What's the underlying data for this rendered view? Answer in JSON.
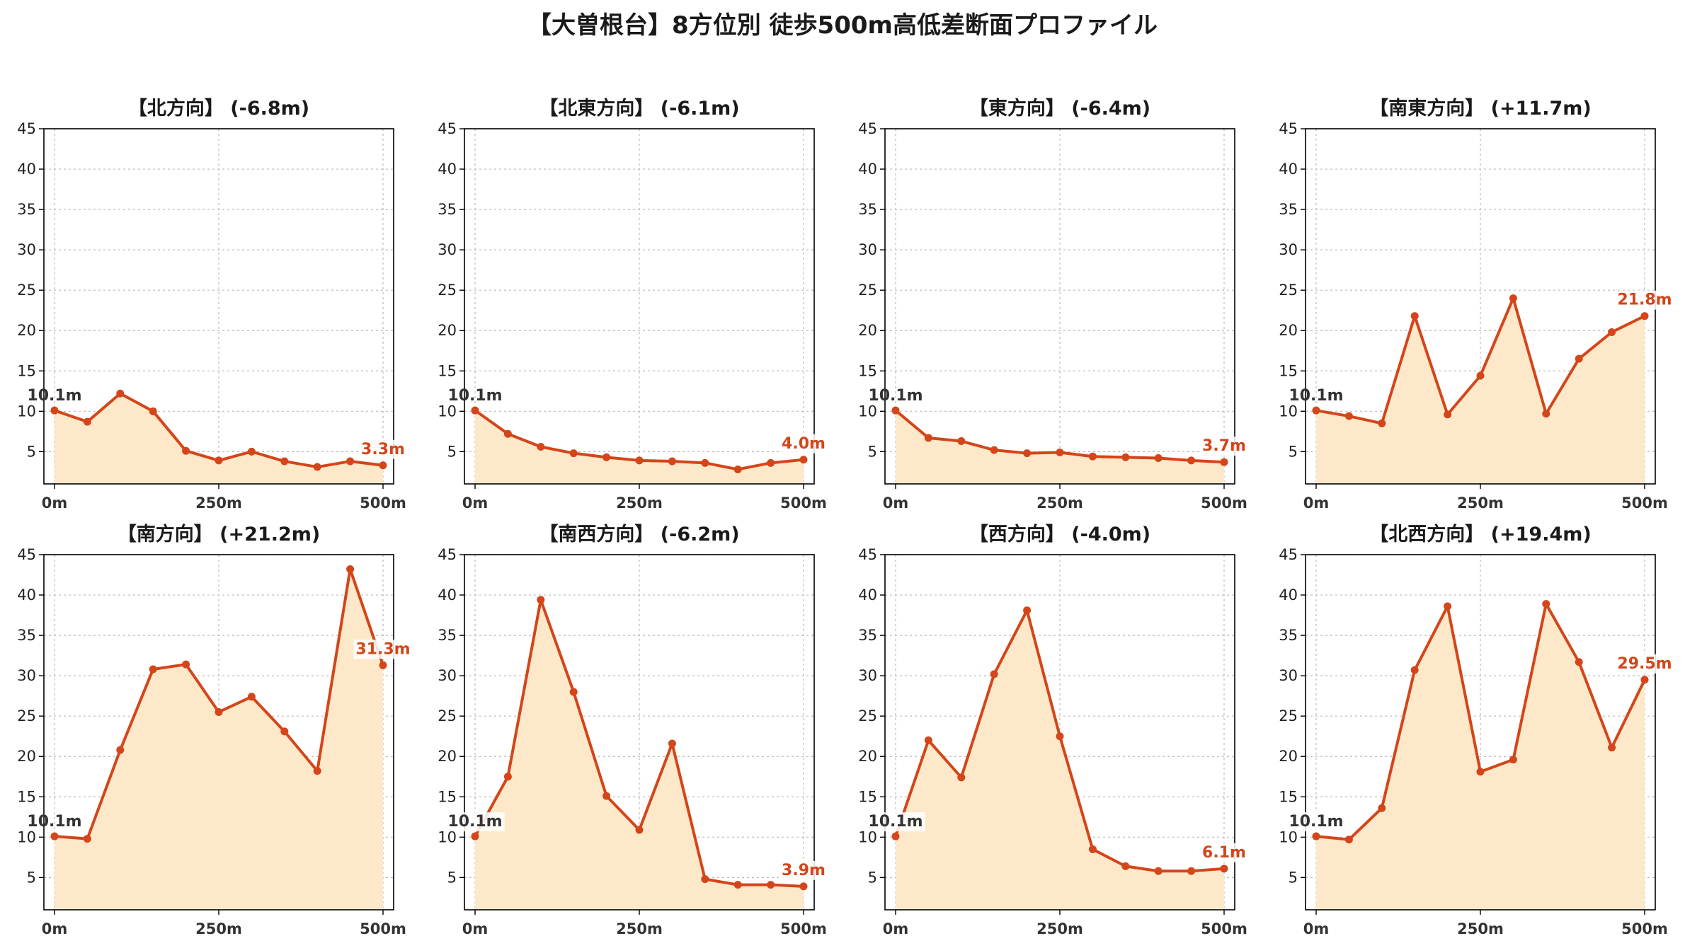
{
  "title": "【大曽根台】8方位別 徒歩500m高低差断面プロファイル",
  "colors": {
    "line": "#d4451a",
    "fill": "#fde9c9",
    "grid": "#bbbbbb",
    "start_label": "#333333",
    "end_label": "#d4451a"
  },
  "chart_data": [
    {
      "type": "line",
      "title": "【北方向】 (-6.8m)",
      "x": [
        0,
        50,
        100,
        150,
        200,
        250,
        300,
        350,
        400,
        450,
        500
      ],
      "series": [
        {
          "values": [
            10.1,
            8.7,
            12.2,
            10.0,
            5.1,
            3.9,
            5.0,
            3.8,
            3.1,
            3.8,
            3.3
          ]
        }
      ],
      "xticks": [
        "0m",
        "250m",
        "500m"
      ],
      "ylim": [
        1,
        45
      ],
      "yticks": [
        5,
        10,
        15,
        20,
        25,
        30,
        35,
        40,
        45
      ],
      "start_label": "10.1m",
      "end_label": "3.3m",
      "grid": true
    },
    {
      "type": "line",
      "title": "【北東方向】 (-6.1m)",
      "x": [
        0,
        50,
        100,
        150,
        200,
        250,
        300,
        350,
        400,
        450,
        500
      ],
      "series": [
        {
          "values": [
            10.1,
            7.2,
            5.6,
            4.8,
            4.3,
            3.9,
            3.8,
            3.6,
            2.8,
            3.6,
            4.0
          ]
        }
      ],
      "xticks": [
        "0m",
        "250m",
        "500m"
      ],
      "ylim": [
        1,
        45
      ],
      "yticks": [
        5,
        10,
        15,
        20,
        25,
        30,
        35,
        40,
        45
      ],
      "start_label": "10.1m",
      "end_label": "4.0m",
      "grid": true
    },
    {
      "type": "line",
      "title": "【東方向】 (-6.4m)",
      "x": [
        0,
        50,
        100,
        150,
        200,
        250,
        300,
        350,
        400,
        450,
        500
      ],
      "series": [
        {
          "values": [
            10.1,
            6.7,
            6.3,
            5.2,
            4.8,
            4.9,
            4.4,
            4.3,
            4.2,
            3.9,
            3.7
          ]
        }
      ],
      "xticks": [
        "0m",
        "250m",
        "500m"
      ],
      "ylim": [
        1,
        45
      ],
      "yticks": [
        5,
        10,
        15,
        20,
        25,
        30,
        35,
        40,
        45
      ],
      "start_label": "10.1m",
      "end_label": "3.7m",
      "grid": true
    },
    {
      "type": "line",
      "title": "【南東方向】 (+11.7m)",
      "x": [
        0,
        50,
        100,
        150,
        200,
        250,
        300,
        350,
        400,
        450,
        500
      ],
      "series": [
        {
          "values": [
            10.1,
            9.4,
            8.5,
            21.8,
            9.6,
            14.4,
            24.0,
            9.7,
            16.5,
            19.8,
            21.8
          ]
        }
      ],
      "xticks": [
        "0m",
        "250m",
        "500m"
      ],
      "ylim": [
        1,
        45
      ],
      "yticks": [
        5,
        10,
        15,
        20,
        25,
        30,
        35,
        40,
        45
      ],
      "start_label": "10.1m",
      "end_label": "21.8m",
      "grid": true
    },
    {
      "type": "line",
      "title": "【南方向】 (+21.2m)",
      "x": [
        0,
        50,
        100,
        150,
        200,
        250,
        300,
        350,
        400,
        450,
        500
      ],
      "series": [
        {
          "values": [
            10.1,
            9.8,
            20.8,
            30.8,
            31.4,
            25.5,
            27.4,
            23.1,
            18.2,
            43.2,
            31.3
          ]
        }
      ],
      "xticks": [
        "0m",
        "250m",
        "500m"
      ],
      "ylim": [
        1,
        45
      ],
      "yticks": [
        5,
        10,
        15,
        20,
        25,
        30,
        35,
        40,
        45
      ],
      "start_label": "10.1m",
      "end_label": "31.3m",
      "grid": true
    },
    {
      "type": "line",
      "title": "【南西方向】 (-6.2m)",
      "x": [
        0,
        50,
        100,
        150,
        200,
        250,
        300,
        350,
        400,
        450,
        500
      ],
      "series": [
        {
          "values": [
            10.1,
            17.5,
            39.4,
            28.0,
            15.1,
            10.9,
            21.6,
            4.8,
            4.1,
            4.1,
            3.9
          ]
        }
      ],
      "xticks": [
        "0m",
        "250m",
        "500m"
      ],
      "ylim": [
        1,
        45
      ],
      "yticks": [
        5,
        10,
        15,
        20,
        25,
        30,
        35,
        40,
        45
      ],
      "start_label": "10.1m",
      "end_label": "3.9m",
      "grid": true
    },
    {
      "type": "line",
      "title": "【西方向】 (-4.0m)",
      "x": [
        0,
        50,
        100,
        150,
        200,
        250,
        300,
        350,
        400,
        450,
        500
      ],
      "series": [
        {
          "values": [
            10.1,
            22.0,
            17.4,
            30.2,
            38.1,
            22.5,
            8.5,
            6.4,
            5.8,
            5.8,
            6.1
          ]
        }
      ],
      "xticks": [
        "0m",
        "250m",
        "500m"
      ],
      "ylim": [
        1,
        45
      ],
      "yticks": [
        5,
        10,
        15,
        20,
        25,
        30,
        35,
        40,
        45
      ],
      "start_label": "10.1m",
      "end_label": "6.1m",
      "grid": true
    },
    {
      "type": "line",
      "title": "【北西方向】 (+19.4m)",
      "x": [
        0,
        50,
        100,
        150,
        200,
        250,
        300,
        350,
        400,
        450,
        500
      ],
      "series": [
        {
          "values": [
            10.1,
            9.7,
            13.6,
            30.7,
            38.6,
            18.1,
            19.6,
            38.9,
            31.7,
            21.1,
            29.5
          ]
        }
      ],
      "xticks": [
        "0m",
        "250m",
        "500m"
      ],
      "ylim": [
        1,
        45
      ],
      "yticks": [
        5,
        10,
        15,
        20,
        25,
        30,
        35,
        40,
        45
      ],
      "start_label": "10.1m",
      "end_label": "29.5m",
      "grid": true
    }
  ]
}
